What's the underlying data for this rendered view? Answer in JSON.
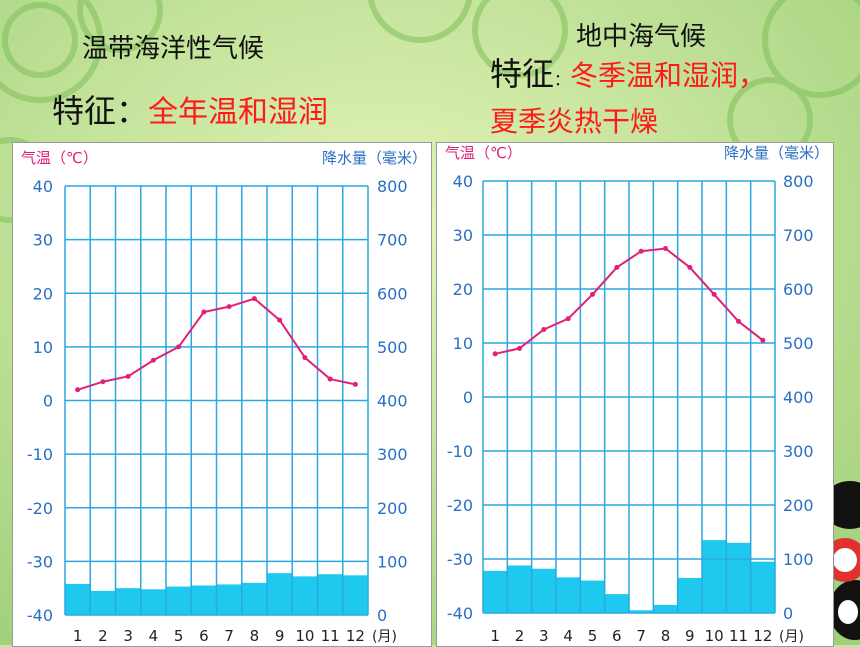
{
  "colors": {
    "temperature_line": "#e0207a",
    "precipitation_bar": "#1ec8ef",
    "grid": "#2aa9e0",
    "axis_text": "#2a6fc2",
    "heading_text": "#e0207a",
    "feature_text": "#ff1a1a"
  },
  "slide": {
    "left": {
      "title": "温带海洋性气候",
      "feature_label": "特征：",
      "feature_text": "全年温和湿润"
    },
    "right": {
      "title": "地中海气候",
      "feature_label": "特征",
      "feature_sep": "：",
      "feature_text_line1": "冬季温和湿润，",
      "feature_text_line2": "夏季炎热干燥"
    }
  },
  "chart_data": [
    {
      "type": "bar+line",
      "left_axis_heading": "气温（℃）",
      "right_axis_heading": "降水量（毫米）",
      "month_unit": "(月)",
      "categories": [
        "1",
        "2",
        "3",
        "4",
        "5",
        "6",
        "7",
        "8",
        "9",
        "10",
        "11",
        "12"
      ],
      "temperature_ticks": [
        "40",
        "30",
        "20",
        "10",
        "0",
        "-10",
        "-20",
        "-30",
        "-40"
      ],
      "precip_ticks": [
        "800",
        "700",
        "600",
        "500",
        "400",
        "300",
        "200",
        "100",
        "0"
      ],
      "temperature_range": [
        -40,
        40
      ],
      "precip_range": [
        0,
        800
      ],
      "series": [
        {
          "values": [
            2,
            3.5,
            4.5,
            7.5,
            10,
            16.5,
            17.5,
            19,
            15,
            8,
            4,
            3
          ]
        },
        {
          "values": [
            58,
            45,
            50,
            48,
            53,
            55,
            57,
            60,
            78,
            72,
            76,
            74
          ]
        }
      ]
    },
    {
      "type": "bar+line",
      "left_axis_heading": "气温（℃）",
      "right_axis_heading": "降水量（毫米）",
      "month_unit": "(月)",
      "categories": [
        "1",
        "2",
        "3",
        "4",
        "5",
        "6",
        "7",
        "8",
        "9",
        "10",
        "11",
        "12"
      ],
      "temperature_ticks": [
        "40",
        "30",
        "20",
        "10",
        "0",
        "-10",
        "-20",
        "-30",
        "-40"
      ],
      "precip_ticks": [
        "800",
        "700",
        "600",
        "500",
        "400",
        "300",
        "200",
        "100",
        "0"
      ],
      "temperature_range": [
        -40,
        40
      ],
      "precip_range": [
        0,
        800
      ],
      "series": [
        {
          "values": [
            8,
            9,
            12.5,
            14.5,
            19,
            24,
            27,
            27.5,
            24,
            19,
            14,
            10.5
          ]
        },
        {
          "values": [
            78,
            88,
            82,
            66,
            60,
            35,
            5,
            15,
            65,
            135,
            130,
            95
          ]
        }
      ]
    }
  ]
}
